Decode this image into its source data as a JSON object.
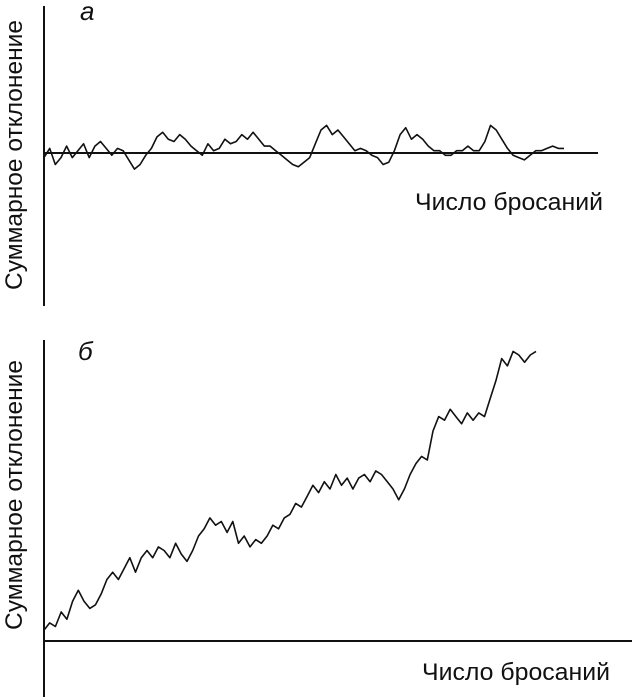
{
  "chart_data": [
    {
      "type": "line",
      "panel_label": "а",
      "xlabel": "Число бросаний",
      "ylabel": "Суммарное отклонение",
      "axis_color": "#111111",
      "line_color": "#111111",
      "xlim": [
        0,
        100
      ],
      "ylim": [
        -20,
        20
      ],
      "grid": false,
      "series": [
        {
          "values": [
            [
              0,
              -1
            ],
            [
              1,
              1
            ],
            [
              2,
              -2.5
            ],
            [
              3,
              -1
            ],
            [
              4,
              1.5
            ],
            [
              5,
              -1
            ],
            [
              6,
              0.5
            ],
            [
              7,
              2
            ],
            [
              8,
              -1
            ],
            [
              9,
              1.5
            ],
            [
              10,
              2.5
            ],
            [
              11,
              1
            ],
            [
              12,
              -0.5
            ],
            [
              13,
              1
            ],
            [
              14,
              0.5
            ],
            [
              15,
              -1.5
            ],
            [
              16,
              -3.5
            ],
            [
              17,
              -2.5
            ],
            [
              18,
              -0.5
            ],
            [
              19,
              1
            ],
            [
              20,
              3.5
            ],
            [
              21,
              4.5
            ],
            [
              22,
              3
            ],
            [
              23,
              2.5
            ],
            [
              24,
              4
            ],
            [
              25,
              3
            ],
            [
              26,
              1.5
            ],
            [
              27,
              0.5
            ],
            [
              28,
              -0.5
            ],
            [
              29,
              2
            ],
            [
              30,
              0.5
            ],
            [
              31,
              1
            ],
            [
              32,
              3
            ],
            [
              33,
              2
            ],
            [
              34,
              2.5
            ],
            [
              35,
              4
            ],
            [
              36,
              3
            ],
            [
              37,
              4.5
            ],
            [
              38,
              3
            ],
            [
              39,
              1.5
            ],
            [
              40,
              1.5
            ],
            [
              41,
              0.5
            ],
            [
              42,
              -0.5
            ],
            [
              43,
              -1.5
            ],
            [
              44,
              -2.5
            ],
            [
              45,
              -3
            ],
            [
              46,
              -2
            ],
            [
              47,
              -1
            ],
            [
              48,
              2
            ],
            [
              49,
              5
            ],
            [
              50,
              6
            ],
            [
              51,
              4
            ],
            [
              52,
              5
            ],
            [
              53,
              3.5
            ],
            [
              54,
              2
            ],
            [
              55,
              0.5
            ],
            [
              56,
              1
            ],
            [
              57,
              0.5
            ],
            [
              58,
              -0.5
            ],
            [
              59,
              -1
            ],
            [
              60,
              -2.5
            ],
            [
              61,
              -2
            ],
            [
              62,
              0.5
            ],
            [
              63,
              4
            ],
            [
              64,
              5.5
            ],
            [
              65,
              3
            ],
            [
              66,
              4
            ],
            [
              67,
              3
            ],
            [
              68,
              1.5
            ],
            [
              69,
              0.5
            ],
            [
              70,
              0.5
            ],
            [
              71,
              -0.5
            ],
            [
              72,
              -0.5
            ],
            [
              73,
              0.5
            ],
            [
              74,
              0.5
            ],
            [
              75,
              1.5
            ],
            [
              76,
              0.5
            ],
            [
              77,
              0.5
            ],
            [
              78,
              2.5
            ],
            [
              79,
              6
            ],
            [
              80,
              5
            ],
            [
              81,
              3
            ],
            [
              82,
              1
            ],
            [
              83,
              -0.5
            ],
            [
              84,
              -1
            ],
            [
              85,
              -1.5
            ],
            [
              86,
              -0.5
            ],
            [
              87,
              0.5
            ],
            [
              88,
              0.5
            ],
            [
              89,
              1
            ],
            [
              90,
              1.5
            ],
            [
              91,
              1
            ],
            [
              92,
              1
            ]
          ]
        }
      ]
    },
    {
      "type": "line",
      "panel_label": "б",
      "xlabel": "Число бросаний",
      "ylabel": "Суммарное отклонение",
      "axis_color": "#111111",
      "line_color": "#111111",
      "xlim": [
        0,
        100
      ],
      "ylim": [
        0,
        100
      ],
      "grid": false,
      "series": [
        {
          "values": [
            [
              0,
              3
            ],
            [
              1,
              5
            ],
            [
              2,
              4
            ],
            [
              3,
              8
            ],
            [
              4,
              6
            ],
            [
              5,
              11
            ],
            [
              6,
              14
            ],
            [
              7,
              11
            ],
            [
              8,
              9
            ],
            [
              9,
              10
            ],
            [
              10,
              13
            ],
            [
              11,
              17
            ],
            [
              12,
              19
            ],
            [
              13,
              17
            ],
            [
              14,
              20
            ],
            [
              15,
              23
            ],
            [
              16,
              19
            ],
            [
              17,
              23
            ],
            [
              18,
              25
            ],
            [
              19,
              23
            ],
            [
              20,
              26
            ],
            [
              21,
              25
            ],
            [
              22,
              23
            ],
            [
              23,
              27
            ],
            [
              24,
              24
            ],
            [
              25,
              22
            ],
            [
              26,
              25
            ],
            [
              27,
              29
            ],
            [
              28,
              31
            ],
            [
              29,
              34
            ],
            [
              30,
              32
            ],
            [
              31,
              33
            ],
            [
              32,
              30
            ],
            [
              33,
              33
            ],
            [
              34,
              27
            ],
            [
              35,
              29
            ],
            [
              36,
              26
            ],
            [
              37,
              28
            ],
            [
              38,
              27
            ],
            [
              39,
              29
            ],
            [
              40,
              32
            ],
            [
              41,
              31
            ],
            [
              42,
              34
            ],
            [
              43,
              35
            ],
            [
              44,
              38
            ],
            [
              45,
              37
            ],
            [
              46,
              40
            ],
            [
              47,
              43
            ],
            [
              48,
              41
            ],
            [
              49,
              44
            ],
            [
              50,
              42
            ],
            [
              51,
              46
            ],
            [
              52,
              43
            ],
            [
              53,
              45
            ],
            [
              54,
              42
            ],
            [
              55,
              45
            ],
            [
              56,
              46
            ],
            [
              57,
              44
            ],
            [
              58,
              47
            ],
            [
              59,
              46
            ],
            [
              60,
              44
            ],
            [
              61,
              42
            ],
            [
              62,
              39
            ],
            [
              63,
              42
            ],
            [
              64,
              46
            ],
            [
              65,
              49
            ],
            [
              66,
              51
            ],
            [
              67,
              50
            ],
            [
              68,
              58
            ],
            [
              69,
              62
            ],
            [
              70,
              61
            ],
            [
              71,
              64
            ],
            [
              72,
              62
            ],
            [
              73,
              60
            ],
            [
              74,
              63
            ],
            [
              75,
              61
            ],
            [
              76,
              63
            ],
            [
              77,
              62
            ],
            [
              78,
              67
            ],
            [
              79,
              72
            ],
            [
              80,
              78
            ],
            [
              81,
              76
            ],
            [
              82,
              80
            ],
            [
              83,
              79
            ],
            [
              84,
              77
            ],
            [
              85,
              79
            ],
            [
              86,
              80
            ]
          ]
        }
      ]
    }
  ]
}
